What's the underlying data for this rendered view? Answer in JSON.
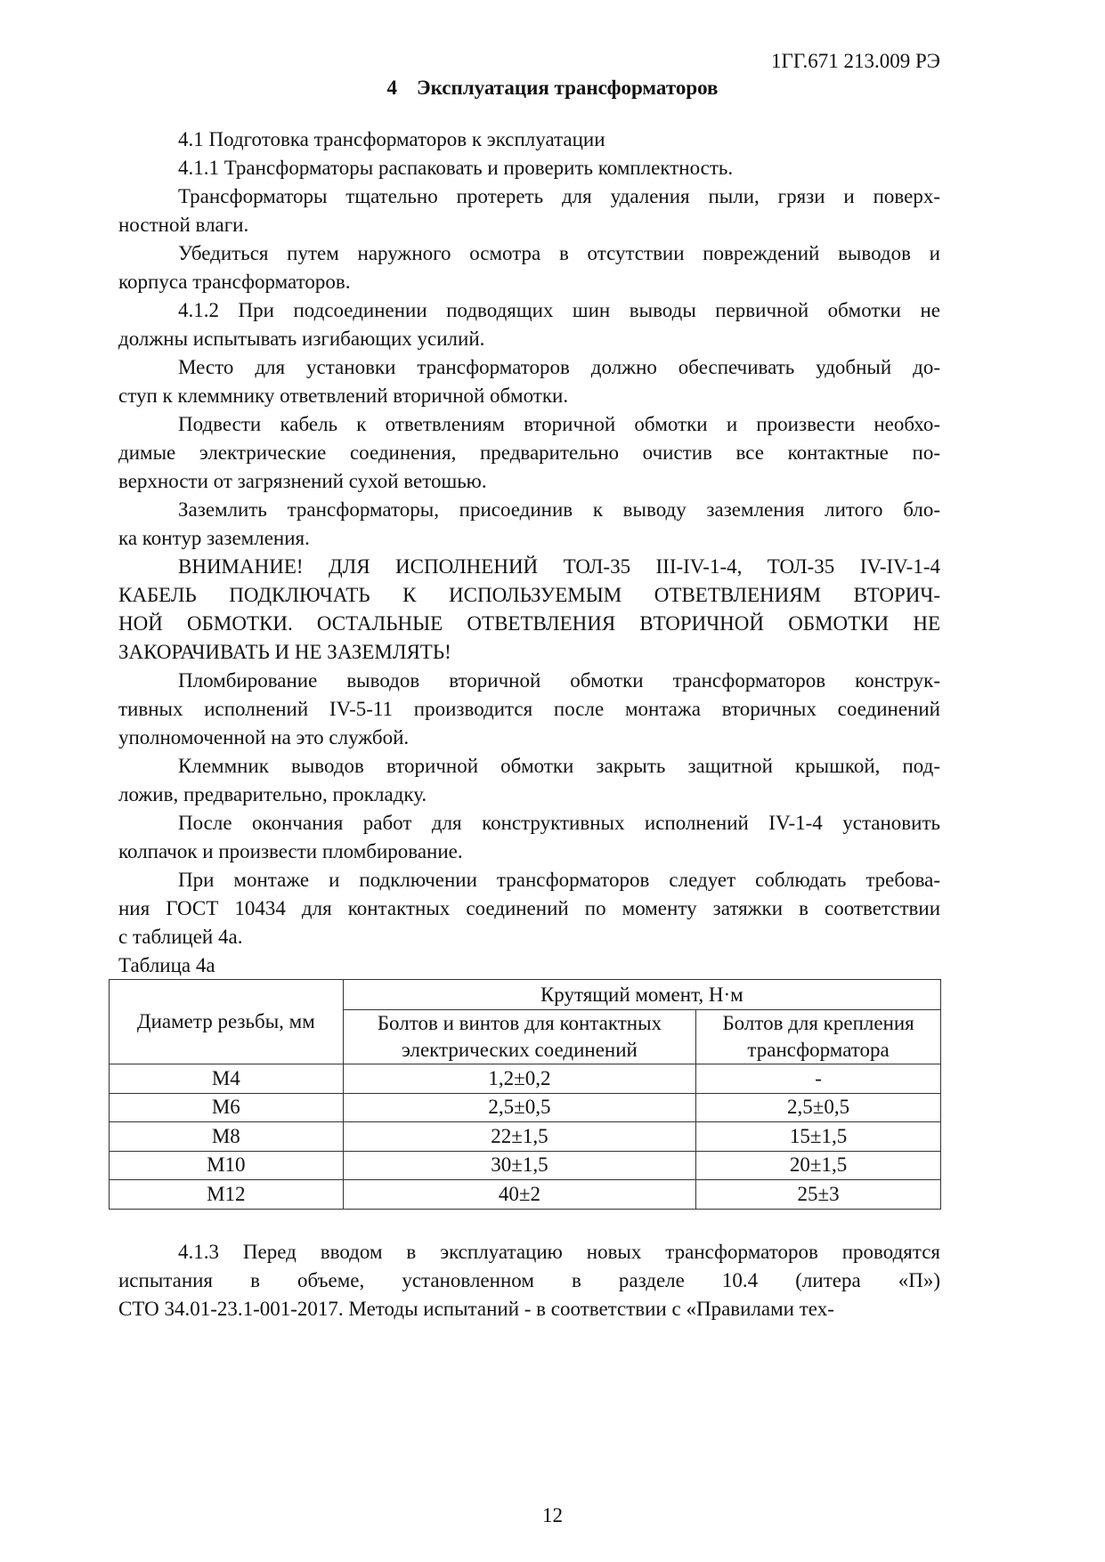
{
  "header": {
    "doc_code": "1ГГ.671 213.009 РЭ"
  },
  "title": {
    "number": "4",
    "text": "Эксплуатация трансформаторов"
  },
  "paragraphs_top": [
    {
      "lines": [
        "4.1      Подготовка трансформаторов к эксплуатации"
      ]
    },
    {
      "lines": [
        "4.1.1  Трансформаторы распаковать и проверить комплектность."
      ]
    },
    {
      "lines": [
        "Трансформаторы тщательно протереть для удаления пыли, грязи и поверх-",
        "ностной влаги."
      ]
    },
    {
      "lines": [
        "Убедиться путем наружного осмотра в отсутствии повреждений выводов и",
        "корпуса трансформаторов."
      ]
    },
    {
      "lines": [
        "4.1.2  При подсоединении подводящих шин выводы первичной обмотки не",
        "должны испытывать изгибающих усилий."
      ]
    },
    {
      "lines": [
        "Место для установки трансформаторов должно обеспечивать удобный до-",
        "ступ к клеммнику ответвлений вторичной обмотки."
      ]
    },
    {
      "lines": [
        "Подвести кабель к ответвлениям вторичной обмотки и произвести необхо-",
        "димые электрические соединения, предварительно очистив все контактные по-",
        "верхности от загрязнений сухой ветошью."
      ]
    },
    {
      "lines": [
        "Заземлить трансформаторы, присоединив к выводу заземления литого бло-",
        "ка контур заземления."
      ]
    },
    {
      "lines": [
        "ВНИМАНИЕ! ДЛЯ ИСПОЛНЕНИЙ ТОЛ-35 III-IV-1-4, ТОЛ-35 IV-IV-1-4",
        "КАБЕЛЬ ПОДКЛЮЧАТЬ К ИСПОЛЬЗУЕМЫМ ОТВЕТВЛЕНИЯМ ВТОРИЧ-",
        "НОЙ ОБМОТКИ. ОСТАЛЬНЫЕ ОТВЕТВЛЕНИЯ ВТОРИЧНОЙ ОБМОТКИ НЕ",
        "ЗАКОРАЧИВАТЬ И НЕ ЗАЗЕМЛЯТЬ!"
      ]
    },
    {
      "lines": [
        "Пломбирование выводов вторичной обмотки трансформаторов конструк-",
        "тивных исполнений IV-5-11 производится после монтажа вторичных соединений",
        "уполномоченной на это службой."
      ]
    },
    {
      "lines": [
        "Клеммник выводов вторичной обмотки закрыть защитной крышкой, под-",
        "ложив, предварительно, прокладку."
      ]
    },
    {
      "lines": [
        "После окончания работ для конструктивных исполнений IV-1-4 установить",
        "колпачок и произвести пломбирование."
      ]
    },
    {
      "lines": [
        "При монтаже и подключении трансформаторов следует соблюдать требова-",
        "ния ГОСТ 10434 для контактных соединений по моменту затяжки в соответствии",
        "с таблицей 4а."
      ]
    }
  ],
  "table": {
    "caption": "Таблица 4а",
    "col1_header": "Диаметр резьбы, мм",
    "group_header": "Крутящий момент, Н·м",
    "col2_header": [
      "Болтов и винтов для контактных",
      "электрических соединений"
    ],
    "col3_header": [
      "Болтов для крепления",
      "трансформатора"
    ],
    "rows": [
      [
        "М4",
        "1,2±0,2",
        "-"
      ],
      [
        "М6",
        "2,5±0,5",
        "2,5±0,5"
      ],
      [
        "М8",
        "22±1,5",
        "15±1,5"
      ],
      [
        "М10",
        "30±1,5",
        "20±1,5"
      ],
      [
        "М12",
        "40±2",
        "25±3"
      ]
    ]
  },
  "paragraphs_bottom": [
    {
      "lines": [
        "4.1.3 Перед вводом в эксплуатацию новых трансформаторов проводятся",
        "испытания в объеме, установленном в разделе 10.4 (литера «П»)",
        "СТО 34.01-23.1-001-2017. Методы испытаний - в соответствии с «Правилами тех-"
      ]
    }
  ],
  "page_number": "12"
}
